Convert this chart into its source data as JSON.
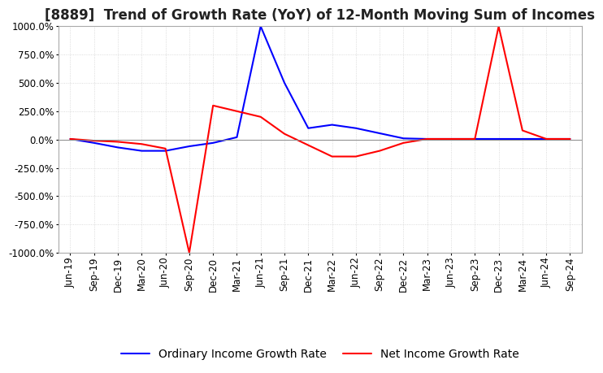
{
  "title": "[8889]  Trend of Growth Rate (YoY) of 12-Month Moving Sum of Incomes",
  "ylim": [
    -1000,
    1000
  ],
  "yticks": [
    -1000,
    -750,
    -500,
    -250,
    0,
    250,
    500,
    750,
    1000
  ],
  "background_color": "#ffffff",
  "grid_color": "#cccccc",
  "x_labels": [
    "Jun-19",
    "Sep-19",
    "Dec-19",
    "Mar-20",
    "Jun-20",
    "Sep-20",
    "Dec-20",
    "Mar-21",
    "Jun-21",
    "Sep-21",
    "Dec-21",
    "Mar-22",
    "Jun-22",
    "Sep-22",
    "Dec-22",
    "Mar-23",
    "Jun-23",
    "Sep-23",
    "Dec-23",
    "Mar-24",
    "Jun-24",
    "Sep-24"
  ],
  "ordinary_income_growth": [
    5,
    -30,
    -70,
    -100,
    -100,
    -60,
    -30,
    20,
    1000,
    500,
    100,
    130,
    100,
    55,
    10,
    5,
    5,
    5,
    5,
    5,
    5,
    5
  ],
  "net_income_growth": [
    5,
    -10,
    -20,
    -40,
    -80,
    -1000,
    300,
    250,
    200,
    50,
    -50,
    -150,
    -150,
    -100,
    -30,
    5,
    5,
    5,
    1000,
    80,
    5,
    5
  ],
  "ordinary_color": "#0000ff",
  "net_color": "#ff0000",
  "ordinary_label": "Ordinary Income Growth Rate",
  "net_label": "Net Income Growth Rate",
  "title_fontsize": 12,
  "legend_fontsize": 10,
  "tick_fontsize": 8.5
}
